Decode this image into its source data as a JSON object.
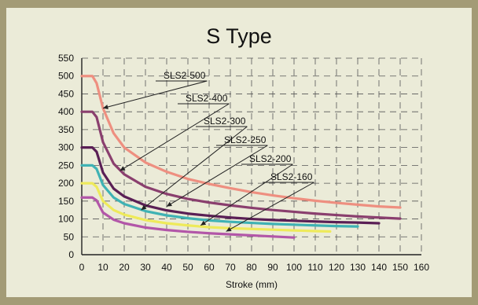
{
  "chart_data": {
    "type": "line",
    "title": "S Type",
    "xlabel": "Stroke (mm)",
    "ylabel": "",
    "xlim": [
      0,
      160
    ],
    "ylim": [
      0,
      550
    ],
    "xticks": [
      "0",
      "10",
      "20",
      "30",
      "40",
      "50",
      "60",
      "70",
      "80",
      "90",
      "100",
      "110",
      "120",
      "130",
      "140",
      "150",
      "160"
    ],
    "yticks": [
      "0",
      "50",
      "100",
      "150",
      "200",
      "250",
      "300",
      "350",
      "400",
      "450",
      "500",
      "550"
    ],
    "grid": "dashed",
    "series": [
      {
        "name": "SLS2-500",
        "color": "#ee8f80",
        "x": [
          0,
          5,
          7,
          10,
          15,
          20,
          30,
          40,
          50,
          60,
          70,
          80,
          90,
          100,
          110,
          120,
          130,
          140,
          150
        ],
        "y": [
          500,
          500,
          480,
          410,
          340,
          300,
          258,
          232,
          212,
          198,
          186,
          175,
          166,
          158,
          151,
          145,
          140,
          135,
          132
        ]
      },
      {
        "name": "SLS2-400",
        "color": "#8a3f6e",
        "x": [
          0,
          5,
          7,
          10,
          15,
          20,
          30,
          40,
          50,
          60,
          70,
          80,
          90,
          100,
          110,
          120,
          130,
          140,
          150
        ],
        "y": [
          400,
          400,
          385,
          315,
          255,
          225,
          190,
          170,
          156,
          146,
          138,
          131,
          125,
          120,
          115,
          111,
          107,
          104,
          101
        ]
      },
      {
        "name": "SLS2-300",
        "color": "#5a1f55",
        "x": [
          0,
          5,
          7,
          10,
          15,
          20,
          30,
          40,
          50,
          60,
          70,
          80,
          90,
          100,
          110,
          120,
          130,
          140
        ],
        "y": [
          300,
          300,
          288,
          230,
          185,
          163,
          138,
          124,
          115,
          109,
          104,
          100,
          97,
          95,
          93,
          91,
          90,
          88
        ]
      },
      {
        "name": "SLS2-250",
        "color": "#3fb2b4",
        "x": [
          0,
          5,
          7,
          10,
          15,
          20,
          30,
          40,
          50,
          60,
          70,
          80,
          90,
          100,
          110,
          120,
          130
        ],
        "y": [
          250,
          250,
          240,
          195,
          160,
          142,
          122,
          110,
          102,
          96,
          92,
          89,
          86,
          84,
          82,
          80,
          79
        ]
      },
      {
        "name": "SLS2-200",
        "color": "#eeea5a",
        "x": [
          0,
          5,
          7,
          10,
          15,
          20,
          30,
          40,
          50,
          60,
          70,
          80,
          90,
          100,
          110,
          117
        ],
        "y": [
          200,
          200,
          190,
          150,
          125,
          112,
          97,
          88,
          82,
          77,
          74,
          72,
          70,
          68,
          66,
          65
        ]
      },
      {
        "name": "SLS2-160",
        "color": "#b256a8",
        "x": [
          0,
          5,
          7,
          10,
          15,
          20,
          30,
          40,
          50,
          60,
          70,
          80,
          90,
          100
        ],
        "y": [
          160,
          160,
          152,
          118,
          98,
          88,
          76,
          69,
          64,
          60,
          57,
          54,
          51,
          48
        ]
      }
    ]
  }
}
